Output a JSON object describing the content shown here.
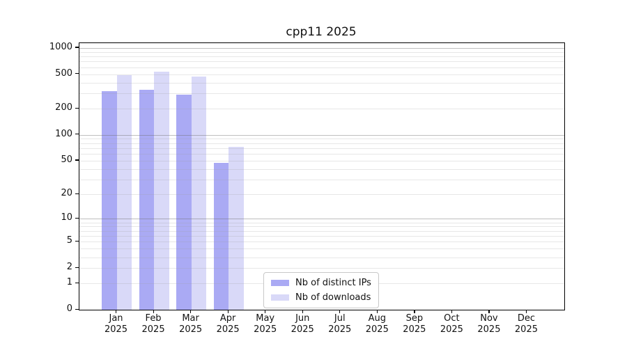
{
  "chart_data": {
    "type": "bar",
    "title": "cpp11 2025",
    "scale": "log1p",
    "year": "2025",
    "months": [
      "Jan",
      "Feb",
      "Mar",
      "Apr",
      "May",
      "Jun",
      "Jul",
      "Aug",
      "Sep",
      "Oct",
      "Nov",
      "Dec"
    ],
    "categories": [
      "Jan 2025",
      "Feb 2025",
      "Mar 2025",
      "Apr 2025",
      "May 2025",
      "Jun 2025",
      "Jul 2025",
      "Aug 2025",
      "Sep 2025",
      "Oct 2025",
      "Nov 2025",
      "Dec 2025"
    ],
    "series": [
      {
        "name": "Nb of distinct IPs",
        "color": "#aaaaf4",
        "values": [
          320,
          330,
          290,
          47,
          null,
          null,
          null,
          null,
          null,
          null,
          null,
          null
        ]
      },
      {
        "name": "Nb of downloads",
        "color": "#d9d9f8",
        "values": [
          490,
          530,
          470,
          72,
          null,
          null,
          null,
          null,
          null,
          null,
          null,
          null
        ]
      }
    ],
    "yticks": [
      0,
      1,
      2,
      5,
      10,
      20,
      50,
      100,
      200,
      500,
      1000
    ],
    "grid_minor_values": [
      1,
      2,
      3,
      4,
      5,
      6,
      7,
      8,
      9,
      20,
      30,
      40,
      50,
      60,
      70,
      80,
      90,
      200,
      300,
      400,
      500,
      600,
      700,
      800,
      900
    ],
    "grid_major_values": [
      10,
      100,
      1000
    ],
    "ylim": [
      0,
      1135
    ],
    "xlabel": "",
    "ylabel": "",
    "grid": "on",
    "legend_position": "lower center",
    "colors": {
      "axis": "#000000",
      "grid_major": "#c2c2c2",
      "grid_minor": "#e8e8e8",
      "background": "#ffffff"
    }
  }
}
